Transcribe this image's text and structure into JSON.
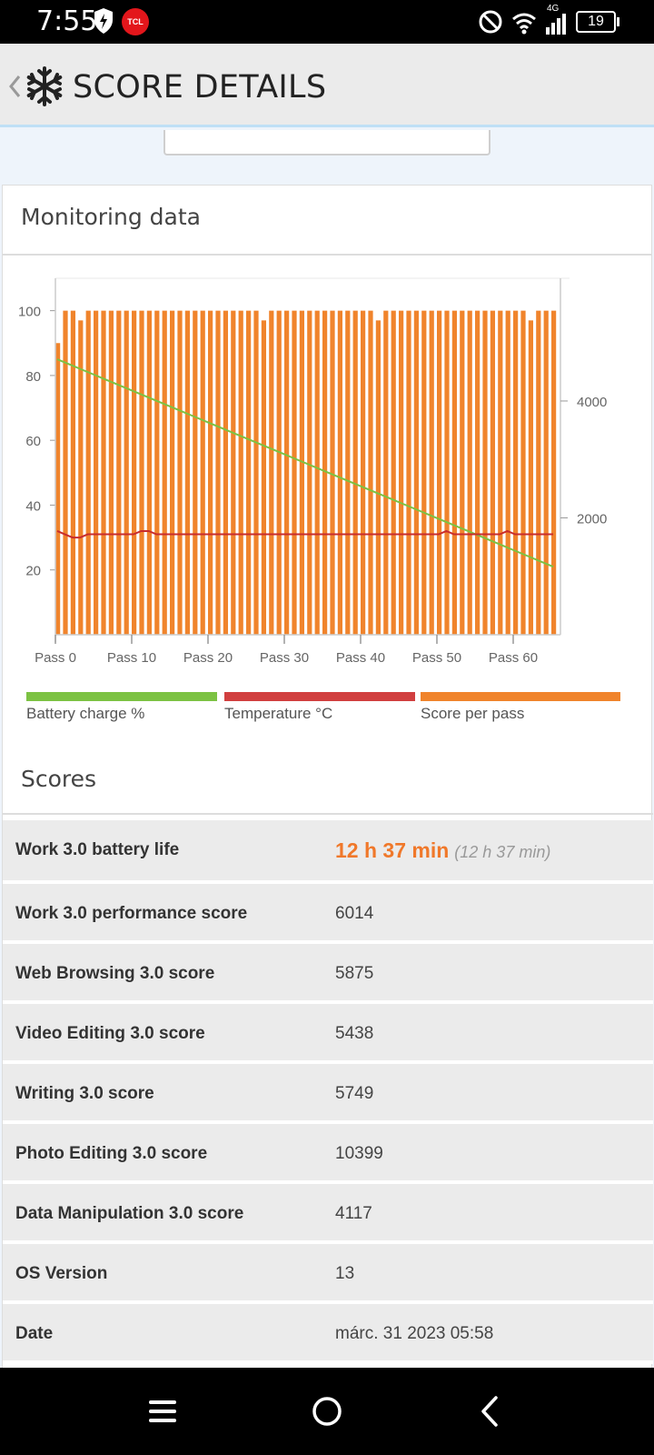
{
  "status_bar": {
    "time": "7:55",
    "carrier_badge": "TCL",
    "network": "4G",
    "battery": "19",
    "icons": [
      "shield-bolt-icon",
      "do-not-disturb-icon",
      "wifi-icon",
      "signal-icon",
      "battery-icon"
    ]
  },
  "app_bar": {
    "title": "SCORE DETAILS",
    "icons": [
      "back-chevron-icon",
      "snowflake-icon"
    ]
  },
  "monitoring": {
    "title": "Monitoring data",
    "legend": [
      {
        "label": "Battery charge %",
        "color": "#7cc243"
      },
      {
        "label": "Temperature °C",
        "color": "#d13f3f"
      },
      {
        "label": "Score per pass",
        "color": "#f0842c"
      }
    ]
  },
  "chart_data": {
    "type": "bar",
    "x_tick_labels": [
      "Pass 0",
      "Pass 10",
      "Pass 20",
      "Pass 30",
      "Pass 40",
      "Pass 50",
      "Pass 60"
    ],
    "left_axis": {
      "ticks": [
        20,
        40,
        60,
        80,
        100
      ],
      "range": [
        0,
        110
      ]
    },
    "right_axis": {
      "ticks": [
        2000,
        4000
      ],
      "range": [
        0,
        6100
      ]
    },
    "series": [
      {
        "name": "Score per pass",
        "type": "bar",
        "axis": "left",
        "values": [
          90,
          100,
          100,
          97,
          100,
          100,
          100,
          100,
          100,
          100,
          100,
          100,
          100,
          100,
          100,
          100,
          100,
          100,
          100,
          100,
          100,
          100,
          100,
          100,
          100,
          100,
          100,
          97,
          100,
          100,
          100,
          100,
          100,
          100,
          100,
          100,
          100,
          100,
          100,
          100,
          100,
          100,
          97,
          100,
          100,
          100,
          100,
          100,
          100,
          100,
          100,
          100,
          100,
          100,
          100,
          100,
          100,
          100,
          100,
          100,
          100,
          100,
          97,
          100,
          100,
          100
        ]
      },
      {
        "name": "Battery charge %",
        "type": "line",
        "axis": "left",
        "values_start": 85,
        "values_end": 21
      },
      {
        "name": "Temperature °C",
        "type": "line",
        "axis": "left",
        "values": [
          32,
          31,
          30,
          30,
          31,
          31,
          31,
          31,
          31,
          31,
          31,
          32,
          32,
          31,
          31,
          31,
          31,
          31,
          31,
          31,
          31,
          31,
          31,
          31,
          31,
          31,
          31,
          31,
          31,
          31,
          31,
          31,
          31,
          31,
          31,
          31,
          31,
          31,
          31,
          31,
          31,
          31,
          31,
          31,
          31,
          31,
          31,
          31,
          31,
          31,
          31,
          32,
          31,
          31,
          31,
          31,
          31,
          31,
          31,
          32,
          31,
          31,
          31,
          31,
          31,
          31
        ]
      }
    ]
  },
  "scores": {
    "title": "Scores",
    "battery_life": {
      "label": "Work 3.0 battery life",
      "value": "12 h 37 min",
      "sub": "(12 h 37 min)"
    },
    "rows": [
      {
        "label": "Work 3.0 performance score",
        "value": "6014"
      },
      {
        "label": "Web Browsing 3.0 score",
        "value": "5875"
      },
      {
        "label": "Video Editing 3.0 score",
        "value": "5438"
      },
      {
        "label": "Writing 3.0 score",
        "value": "5749"
      },
      {
        "label": "Photo Editing 3.0 score",
        "value": "10399"
      },
      {
        "label": "Data Manipulation 3.0 score",
        "value": "4117"
      },
      {
        "label": "OS Version",
        "value": "13"
      },
      {
        "label": "Date",
        "value": "márc. 31 2023 05:58"
      }
    ]
  },
  "nav_bar": {
    "icons": [
      "menu-icon",
      "home-icon",
      "back-icon"
    ]
  }
}
